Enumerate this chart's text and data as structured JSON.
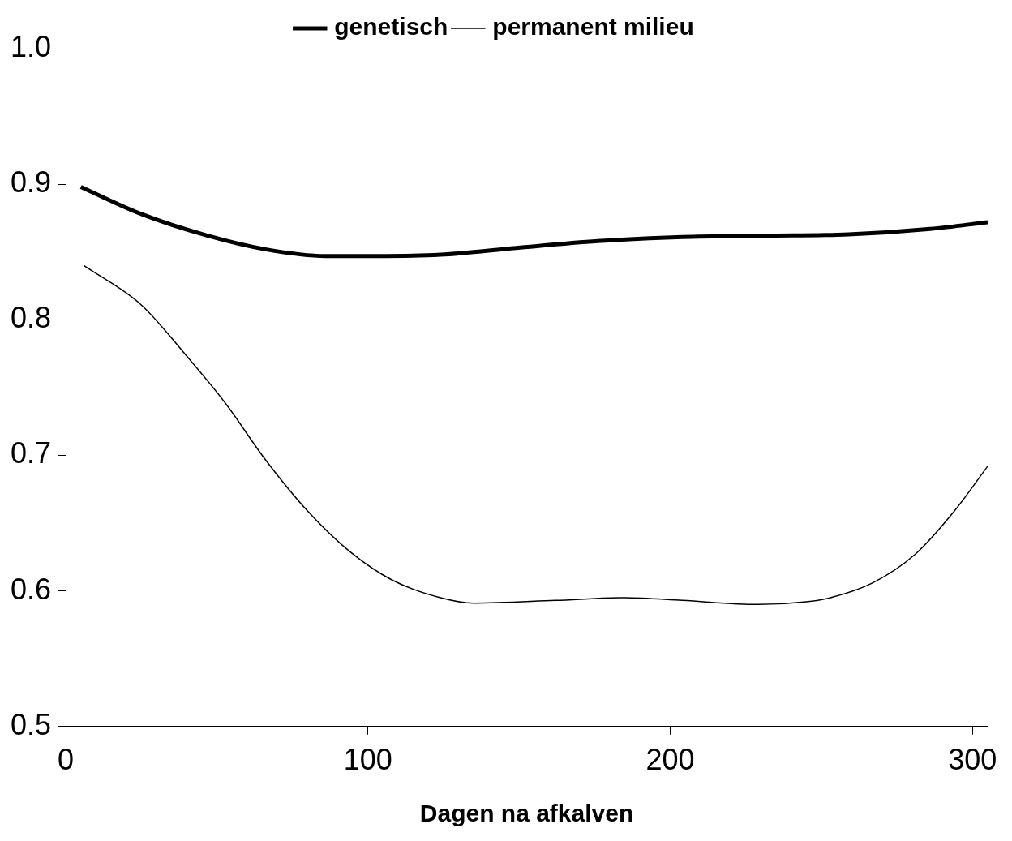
{
  "chart_data": {
    "type": "line",
    "xlabel": "Dagen na afkalven",
    "xlim": [
      0,
      305
    ],
    "xticks": [
      0,
      100,
      200,
      300
    ],
    "ylim": [
      0.5,
      1.0
    ],
    "yticks": [
      {
        "value": 0.5,
        "label": "0.5"
      },
      {
        "value": 0.6,
        "label": "0.6"
      },
      {
        "value": 0.7,
        "label": "0.7"
      },
      {
        "value": 0.8,
        "label": "0.8"
      },
      {
        "value": 0.9,
        "label": "0.9"
      },
      {
        "value": 1.0,
        "label": "1.0"
      }
    ],
    "grid": false,
    "legend": "top",
    "marker": "none",
    "line_style": "solid",
    "series": [
      {
        "name": "genetisch",
        "color": "#000000",
        "x": [
          5,
          25,
          47,
          66,
          86,
          102,
          124,
          149,
          176,
          204,
          231,
          259,
          286,
          305
        ],
        "values": [
          0.898,
          0.878,
          0.862,
          0.852,
          0.847,
          0.847,
          0.848,
          0.853,
          0.858,
          0.861,
          0.862,
          0.863,
          0.867,
          0.872
        ]
      },
      {
        "name": "permanent milieu",
        "color": "#000000",
        "x": [
          6,
          25,
          39,
          53,
          66,
          80,
          94,
          108,
          124,
          135,
          162,
          185,
          204,
          229,
          245,
          253,
          267,
          281,
          294,
          305
        ],
        "values": [
          0.84,
          0.811,
          0.776,
          0.738,
          0.697,
          0.659,
          0.629,
          0.608,
          0.595,
          0.591,
          0.593,
          0.595,
          0.593,
          0.59,
          0.592,
          0.595,
          0.606,
          0.627,
          0.659,
          0.692
        ]
      }
    ]
  }
}
